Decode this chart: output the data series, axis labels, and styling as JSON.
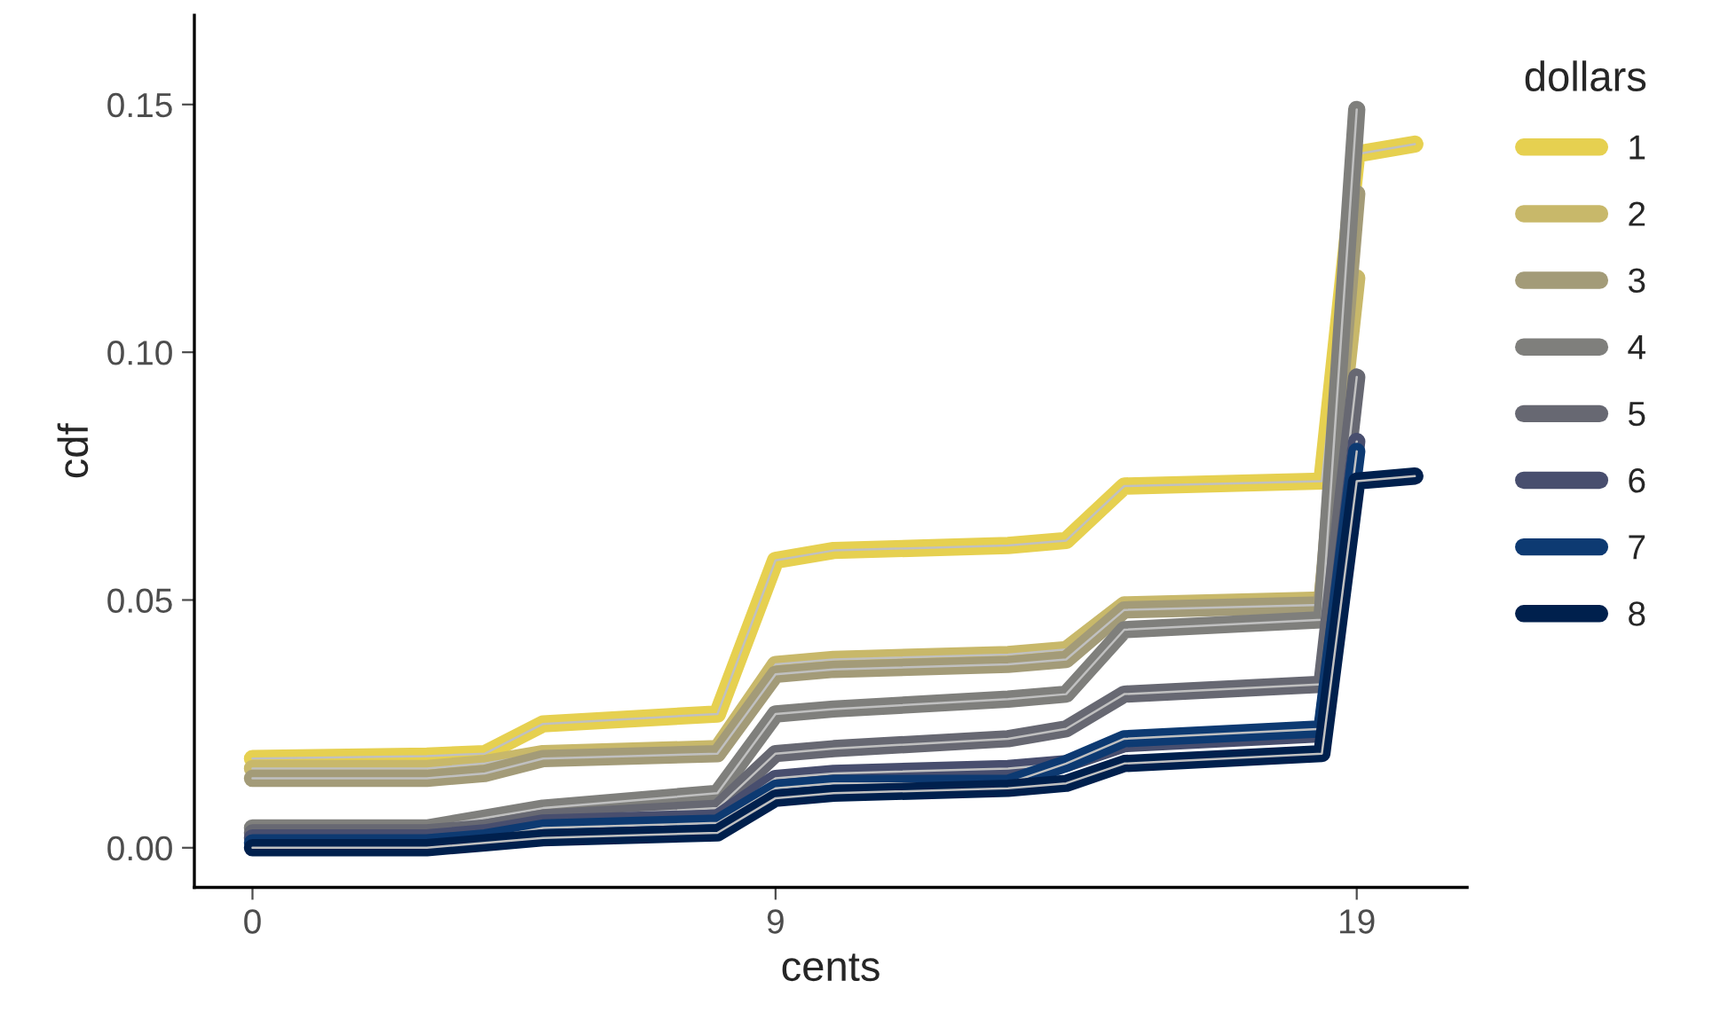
{
  "chart_data": {
    "type": "line",
    "xlabel": "cents",
    "ylabel": "cdf",
    "legend_title": "dollars",
    "legend": "right",
    "xlim": [
      -1,
      20.9
    ],
    "xticks": [
      0,
      9,
      19
    ],
    "ylim": [
      -0.008,
      0.168
    ],
    "yticks": [
      {
        "value": 0,
        "label": "0.00"
      },
      {
        "value": 0.05,
        "label": "0.05"
      },
      {
        "value": 0.1,
        "label": "0.10"
      },
      {
        "value": 0.15,
        "label": "0.15"
      }
    ],
    "grid": false,
    "series": [
      {
        "name": "1",
        "color": "#e6d050",
        "x": [
          0,
          3,
          4,
          5,
          8,
          9,
          10,
          13,
          14,
          15,
          18.4,
          19,
          20
        ],
        "values": [
          0.018,
          0.0185,
          0.019,
          0.025,
          0.027,
          0.058,
          0.06,
          0.061,
          0.062,
          0.073,
          0.074,
          0.14,
          0.142
        ]
      },
      {
        "name": "2",
        "color": "#c8b86a",
        "x": [
          0,
          3,
          4,
          5,
          8,
          9,
          10,
          13,
          14,
          15,
          18.4,
          19
        ],
        "values": [
          0.016,
          0.016,
          0.017,
          0.019,
          0.02,
          0.037,
          0.038,
          0.039,
          0.04,
          0.049,
          0.05,
          0.115
        ]
      },
      {
        "name": "3",
        "color": "#a39b78",
        "x": [
          0,
          3,
          4,
          5,
          8,
          9,
          10,
          13,
          14,
          15,
          18.4,
          19
        ],
        "values": [
          0.014,
          0.014,
          0.015,
          0.018,
          0.019,
          0.035,
          0.036,
          0.037,
          0.038,
          0.048,
          0.049,
          0.132
        ]
      },
      {
        "name": "4",
        "color": "#7f7f7c",
        "x": [
          0,
          3,
          4,
          5,
          8,
          9,
          10,
          13,
          14,
          15,
          18.4,
          19
        ],
        "values": [
          0.004,
          0.004,
          0.006,
          0.008,
          0.011,
          0.027,
          0.028,
          0.03,
          0.031,
          0.044,
          0.046,
          0.149
        ]
      },
      {
        "name": "5",
        "color": "#676872",
        "x": [
          0,
          3,
          4,
          5,
          8,
          9,
          10,
          13,
          14,
          15,
          18.4,
          19
        ],
        "values": [
          0.003,
          0.003,
          0.004,
          0.006,
          0.008,
          0.019,
          0.02,
          0.022,
          0.024,
          0.031,
          0.033,
          0.095
        ]
      },
      {
        "name": "6",
        "color": "#484e6e",
        "x": [
          0,
          3,
          4,
          5,
          8,
          9,
          10,
          13,
          14,
          15,
          18.4,
          19
        ],
        "values": [
          0.002,
          0.002,
          0.003,
          0.005,
          0.006,
          0.014,
          0.015,
          0.016,
          0.017,
          0.021,
          0.023,
          0.082
        ]
      },
      {
        "name": "7",
        "color": "#0d3a72",
        "x": [
          0,
          3,
          4,
          5,
          8,
          9,
          10,
          13,
          14,
          15,
          18.4,
          19
        ],
        "values": [
          0.001,
          0.001,
          0.002,
          0.004,
          0.005,
          0.012,
          0.013,
          0.013,
          0.017,
          0.022,
          0.024,
          0.08
        ]
      },
      {
        "name": "8",
        "color": "#00204d",
        "x": [
          0,
          3,
          4,
          5,
          8,
          9,
          10,
          13,
          14,
          15,
          18.4,
          19,
          20
        ],
        "values": [
          0.0,
          0.0,
          0.001,
          0.002,
          0.003,
          0.01,
          0.011,
          0.012,
          0.013,
          0.017,
          0.019,
          0.074,
          0.075
        ]
      }
    ]
  }
}
